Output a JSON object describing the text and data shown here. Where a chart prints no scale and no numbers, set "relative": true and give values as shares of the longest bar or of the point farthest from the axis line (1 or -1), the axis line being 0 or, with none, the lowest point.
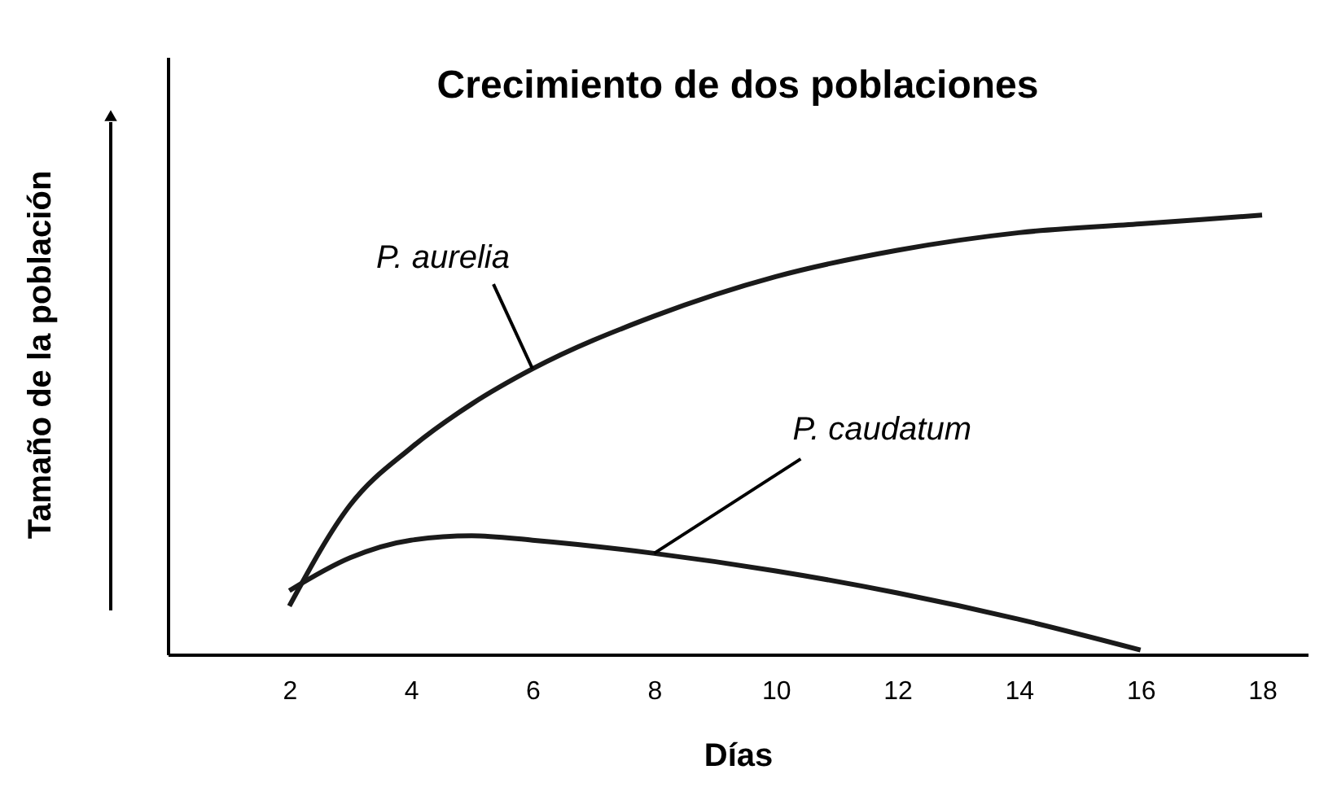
{
  "chart_data": {
    "type": "line",
    "title": "Crecimiento de dos poblaciones",
    "xlabel": "Días",
    "ylabel": "Tamaño de la población",
    "relative": true,
    "xlim": [
      0,
      18.75
    ],
    "xticks": [
      2,
      4,
      6,
      8,
      10,
      12,
      14,
      16,
      18
    ],
    "line_style": "solid",
    "series": [
      {
        "name": "P. aurelia",
        "color": "#1a1a1a",
        "x": [
          2,
          3,
          4,
          5,
          6,
          8,
          10,
          12,
          14,
          16,
          18
        ],
        "values": [
          0.11,
          0.34,
          0.47,
          0.57,
          0.65,
          0.77,
          0.86,
          0.92,
          0.96,
          0.98,
          1
        ]
      },
      {
        "name": "P. caudatum",
        "color": "#1a1a1a",
        "x": [
          2,
          3,
          4,
          5,
          6,
          8,
          10,
          12,
          14,
          16
        ],
        "values": [
          0.145,
          0.22,
          0.26,
          0.27,
          0.26,
          0.23,
          0.19,
          0.14,
          0.08,
          0.01
        ]
      }
    ]
  }
}
